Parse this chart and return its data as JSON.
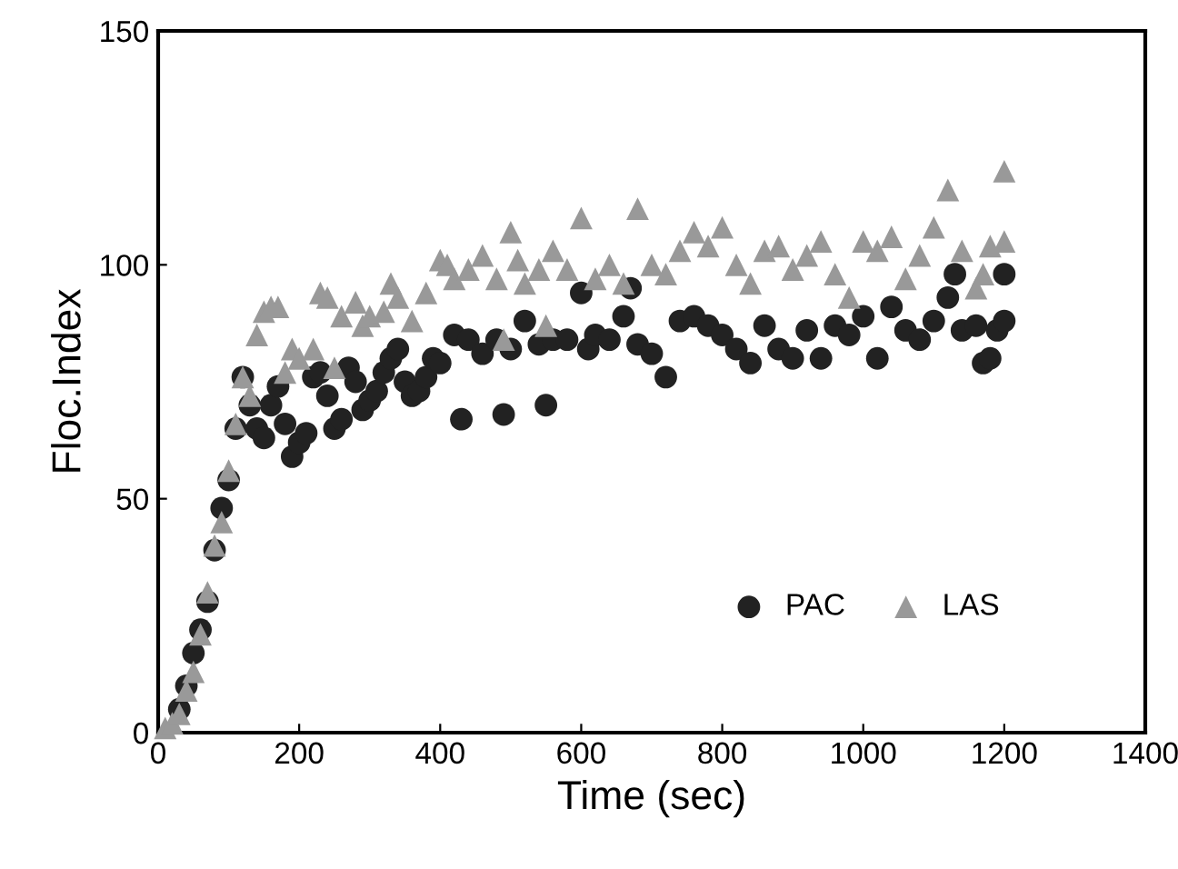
{
  "chart_data": {
    "type": "scatter",
    "xlabel": "Time (sec)",
    "ylabel": "Floc.Index",
    "xlim": [
      0,
      1400
    ],
    "ylim": [
      0,
      150
    ],
    "xticks": [
      0,
      200,
      400,
      600,
      800,
      1000,
      1200,
      1400
    ],
    "yticks": [
      0,
      50,
      100,
      150
    ],
    "grid": false,
    "legend": "lower right",
    "series": [
      {
        "name": "PAC",
        "color": "#222222",
        "marker": "circle",
        "x": [
          30,
          40,
          50,
          60,
          70,
          80,
          90,
          100,
          110,
          120,
          130,
          140,
          150,
          160,
          170,
          180,
          190,
          200,
          210,
          220,
          230,
          240,
          250,
          260,
          270,
          280,
          290,
          300,
          310,
          320,
          330,
          340,
          350,
          360,
          370,
          380,
          390,
          400,
          420,
          430,
          440,
          460,
          480,
          490,
          500,
          520,
          540,
          550,
          560,
          580,
          600,
          610,
          620,
          640,
          660,
          670,
          680,
          700,
          720,
          740,
          760,
          780,
          800,
          820,
          840,
          860,
          880,
          900,
          920,
          940,
          960,
          980,
          1000,
          1020,
          1040,
          1060,
          1080,
          1100,
          1120,
          1130,
          1140,
          1160,
          1170,
          1180,
          1190,
          1200,
          1200
        ],
        "values": [
          5,
          10,
          17,
          22,
          28,
          39,
          48,
          54,
          65,
          76,
          70,
          65,
          63,
          70,
          74,
          66,
          59,
          62,
          64,
          76,
          77,
          72,
          65,
          67,
          78,
          75,
          69,
          71,
          73,
          77,
          80,
          82,
          75,
          72,
          73,
          76,
          80,
          79,
          85,
          67,
          84,
          81,
          84,
          68,
          82,
          88,
          83,
          70,
          84,
          84,
          94,
          82,
          85,
          84,
          89,
          95,
          83,
          81,
          76,
          88,
          89,
          87,
          85,
          82,
          79,
          87,
          82,
          80,
          86,
          80,
          87,
          85,
          89,
          80,
          91,
          86,
          84,
          88,
          93,
          98,
          86,
          87,
          79,
          80,
          86,
          98,
          88
        ]
      },
      {
        "name": "LAS",
        "color": "#999999",
        "marker": "triangle",
        "x": [
          10,
          20,
          30,
          40,
          50,
          60,
          70,
          80,
          90,
          100,
          110,
          120,
          130,
          140,
          150,
          160,
          170,
          180,
          190,
          200,
          220,
          230,
          240,
          250,
          260,
          280,
          290,
          300,
          320,
          330,
          340,
          360,
          380,
          400,
          410,
          420,
          440,
          460,
          480,
          490,
          500,
          510,
          520,
          540,
          550,
          560,
          580,
          600,
          620,
          640,
          660,
          680,
          700,
          720,
          740,
          760,
          780,
          800,
          820,
          840,
          860,
          880,
          900,
          920,
          940,
          960,
          980,
          1000,
          1020,
          1040,
          1060,
          1080,
          1100,
          1120,
          1140,
          1160,
          1170,
          1180,
          1200,
          1200
        ],
        "values": [
          1,
          2,
          4,
          9,
          13,
          21,
          30,
          40,
          45,
          56,
          66,
          76,
          72,
          85,
          90,
          91,
          91,
          77,
          82,
          80,
          82,
          94,
          93,
          78,
          89,
          92,
          87,
          89,
          90,
          96,
          93,
          88,
          94,
          101,
          100,
          97,
          99,
          102,
          97,
          84,
          107,
          101,
          96,
          99,
          87,
          103,
          99,
          110,
          97,
          100,
          96,
          112,
          100,
          98,
          103,
          107,
          104,
          108,
          100,
          96,
          103,
          104,
          99,
          102,
          105,
          98,
          93,
          105,
          103,
          106,
          97,
          102,
          108,
          116,
          103,
          95,
          98,
          104,
          120,
          105
        ]
      }
    ]
  }
}
